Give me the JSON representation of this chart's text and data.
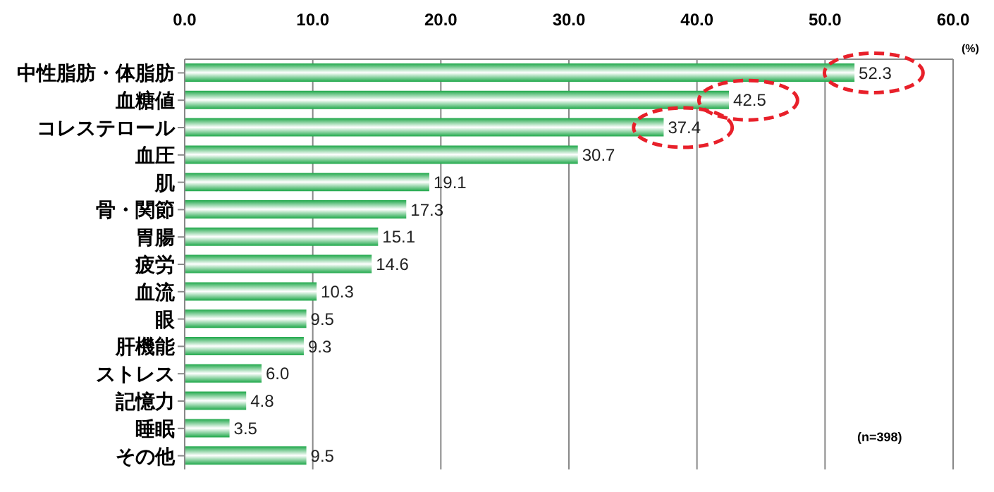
{
  "chart_data": {
    "type": "bar",
    "orientation": "horizontal",
    "categories": [
      "中性脂肪・体脂肪",
      "血糖値",
      "コレステロール",
      "血圧",
      "肌",
      "骨・関節",
      "胃腸",
      "疲労",
      "血流",
      "眼",
      "肝機能",
      "ストレス",
      "記憶力",
      "睡眠",
      "その他"
    ],
    "values": [
      52.3,
      42.5,
      37.4,
      30.7,
      19.1,
      17.3,
      15.1,
      14.6,
      10.3,
      9.5,
      9.3,
      6.0,
      4.8,
      3.5,
      9.5
    ],
    "value_labels": [
      "52.3",
      "42.5",
      "37.4",
      "30.7",
      "19.1",
      "17.3",
      "15.1",
      "14.6",
      "10.3",
      "9.5",
      "9.3",
      "6.0",
      "4.8",
      "3.5",
      "9.5"
    ],
    "color": "#1fa84a",
    "xlim": [
      0,
      60
    ],
    "xticks": [
      {
        "value": 0,
        "label": "0.0"
      },
      {
        "value": 10,
        "label": "10.0"
      },
      {
        "value": 20,
        "label": "20.0"
      },
      {
        "value": 30,
        "label": "30.0"
      },
      {
        "value": 40,
        "label": "40.0"
      },
      {
        "value": 50,
        "label": "50.0"
      },
      {
        "value": 60,
        "label": "60.0"
      }
    ],
    "grid": "x",
    "annotations": [
      "(%)",
      "(n=398)"
    ]
  }
}
